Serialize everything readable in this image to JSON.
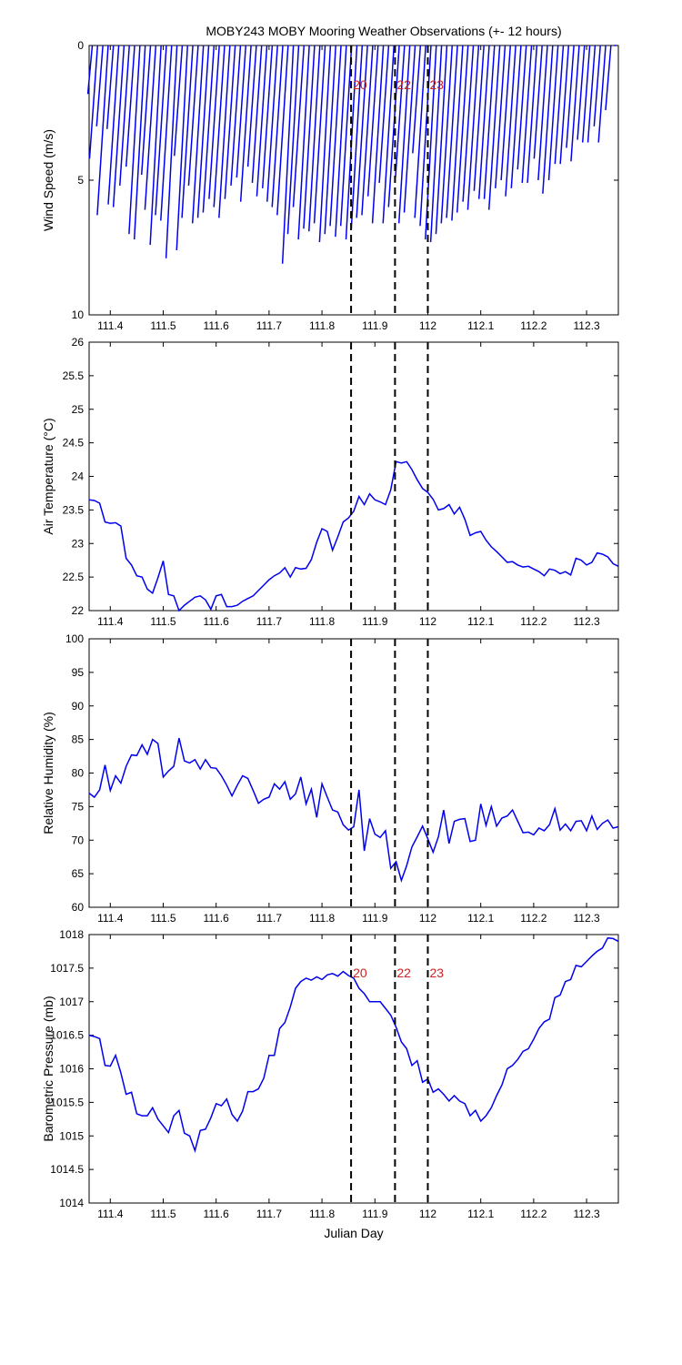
{
  "title": "MOBY243 MOBY Mooring Weather Observations (+- 12 hours)",
  "colors": {
    "series": "#0000ee",
    "marker_label": "#cc2222",
    "axis": "#000000"
  },
  "chart_data": [
    {
      "type": "line",
      "variant": "wind-stick",
      "ylabel": "Wind Speed (m/s)",
      "xlabel": "",
      "xlim": [
        111.36,
        112.36
      ],
      "ylim": [
        0,
        10
      ],
      "y_inverted": true,
      "xticks": [
        "111.4",
        "111.5",
        "111.6",
        "111.7",
        "111.8",
        "111.9",
        "112",
        "112.1",
        "112.2",
        "112.3"
      ],
      "yticks": [
        "0",
        "5",
        "10"
      ],
      "markers": [
        {
          "x": 111.855,
          "label": "20"
        },
        {
          "x": 111.938,
          "label": "22"
        },
        {
          "x": 112.0,
          "label": "23"
        }
      ],
      "series": [
        {
          "x": [
            111.366,
            111.376,
            111.386,
            111.396,
            111.406,
            111.416,
            111.426,
            111.436,
            111.446,
            111.456,
            111.466,
            111.476,
            111.486,
            111.496,
            111.506,
            111.516,
            111.526,
            111.536,
            111.546,
            111.556,
            111.566,
            111.576,
            111.586,
            111.596,
            111.606,
            111.616,
            111.626,
            111.636,
            111.646,
            111.656,
            111.666,
            111.676,
            111.686,
            111.696,
            111.706,
            111.716,
            111.726,
            111.736,
            111.746,
            111.756,
            111.766,
            111.776,
            111.786,
            111.796,
            111.806,
            111.816,
            111.826,
            111.836,
            111.846,
            111.856,
            111.866,
            111.876,
            111.886,
            111.896,
            111.906,
            111.916,
            111.926,
            111.936,
            111.946,
            111.956,
            111.966,
            111.976,
            111.986,
            111.996,
            112.006,
            112.016,
            112.026,
            112.036,
            112.046,
            112.056,
            112.066,
            112.076,
            112.086,
            112.096,
            112.106,
            112.116,
            112.126,
            112.136,
            112.146,
            112.156,
            112.166,
            112.176,
            112.186,
            112.196,
            112.206,
            112.216,
            112.226,
            112.236,
            112.246,
            112.256,
            112.266,
            112.276,
            112.286,
            112.296,
            112.306,
            112.316,
            112.326,
            112.336,
            112.346,
            112.356
          ],
          "values": [
            1.8,
            4.2,
            3.0,
            6.3,
            3.1,
            5.9,
            6.0,
            5.2,
            4.5,
            7.0,
            7.2,
            4.8,
            6.1,
            7.4,
            6.3,
            6.5,
            7.9,
            4.1,
            7.6,
            6.4,
            5.2,
            6.6,
            6.4,
            6.2,
            5.7,
            6.0,
            6.4,
            5.7,
            5.2,
            4.9,
            5.8,
            4.5,
            5.1,
            5.6,
            5.3,
            5.8,
            6.0,
            6.3,
            8.1,
            7.0,
            6.0,
            7.2,
            6.8,
            6.9,
            6.6,
            7.3,
            7.0,
            6.7,
            7.1,
            6.7,
            7.2,
            6.8,
            6.4,
            6.3,
            5.6,
            6.6,
            5.1,
            6.6,
            6.0,
            4.9,
            6.6,
            6.2,
            4.0,
            6.4,
            6.7,
            7.2,
            7.3,
            7.0,
            6.6,
            6.4,
            6.5,
            6.2,
            5.8,
            6.1,
            5.4,
            5.7,
            5.7,
            6.1,
            5.3,
            5.0,
            5.6,
            5.3,
            4.6,
            5.1,
            5.1,
            4.2,
            5.0,
            5.5,
            5.0,
            4.4,
            4.4,
            3.8,
            4.3,
            3.5,
            3.6,
            3.6,
            3.0,
            3.6,
            2.4,
            0.0
          ]
        }
      ]
    },
    {
      "type": "line",
      "ylabel": "Air Temperature (°C)",
      "xlabel": "",
      "xlim": [
        111.36,
        112.36
      ],
      "ylim": [
        22,
        26
      ],
      "xticks": [
        "111.4",
        "111.5",
        "111.6",
        "111.7",
        "111.8",
        "111.9",
        "112",
        "112.1",
        "112.2",
        "112.3"
      ],
      "yticks": [
        "22",
        "22.5",
        "23",
        "23.5",
        "24",
        "24.5",
        "25",
        "25.5",
        "26"
      ],
      "markers": [
        {
          "x": 111.855,
          "label": ""
        },
        {
          "x": 111.938,
          "label": ""
        },
        {
          "x": 112.0,
          "label": ""
        }
      ],
      "series": [
        {
          "x": [
            111.36,
            111.37,
            111.38,
            111.39,
            111.4,
            111.41,
            111.42,
            111.43,
            111.44,
            111.45,
            111.46,
            111.47,
            111.48,
            111.49,
            111.5,
            111.51,
            111.52,
            111.53,
            111.54,
            111.55,
            111.56,
            111.57,
            111.58,
            111.59,
            111.6,
            111.61,
            111.62,
            111.63,
            111.64,
            111.65,
            111.66,
            111.67,
            111.68,
            111.69,
            111.7,
            111.71,
            111.72,
            111.73,
            111.74,
            111.75,
            111.76,
            111.77,
            111.78,
            111.79,
            111.8,
            111.81,
            111.82,
            111.83,
            111.84,
            111.85,
            111.86,
            111.87,
            111.88,
            111.89,
            111.9,
            111.91,
            111.92,
            111.93,
            111.94,
            111.95,
            111.96,
            111.97,
            111.98,
            111.99,
            112.0,
            112.01,
            112.02,
            112.03,
            112.04,
            112.05,
            112.06,
            112.07,
            112.08,
            112.09,
            112.1,
            112.11,
            112.12,
            112.13,
            112.14,
            112.15,
            112.16,
            112.17,
            112.18,
            112.19,
            112.2,
            112.21,
            112.22,
            112.23,
            112.24,
            112.25,
            112.26,
            112.27,
            112.28,
            112.29,
            112.3,
            112.31,
            112.32,
            112.33,
            112.34,
            112.35,
            112.36
          ],
          "values": [
            23.65,
            23.64,
            23.6,
            23.32,
            23.3,
            23.31,
            23.26,
            22.78,
            22.68,
            22.52,
            22.5,
            22.32,
            22.26,
            22.49,
            22.74,
            22.24,
            22.22,
            22.0,
            22.08,
            22.14,
            22.2,
            22.22,
            22.16,
            22.02,
            22.22,
            22.24,
            22.06,
            22.06,
            22.08,
            22.14,
            22.18,
            22.22,
            22.3,
            22.38,
            22.46,
            22.52,
            22.56,
            22.64,
            22.5,
            22.64,
            22.62,
            22.63,
            22.76,
            23.02,
            23.22,
            23.18,
            22.9,
            23.1,
            23.32,
            23.38,
            23.48,
            23.7,
            23.58,
            23.74,
            23.65,
            23.62,
            23.58,
            23.8,
            24.22,
            24.2,
            24.22,
            24.1,
            23.95,
            23.82,
            23.76,
            23.66,
            23.5,
            23.52,
            23.58,
            23.44,
            23.54,
            23.36,
            23.12,
            23.16,
            23.18,
            23.05,
            22.95,
            22.88,
            22.8,
            22.72,
            22.73,
            22.68,
            22.65,
            22.66,
            22.62,
            22.58,
            22.52,
            22.62,
            22.6,
            22.55,
            22.58,
            22.53,
            22.78,
            22.75,
            22.68,
            22.72,
            22.86,
            22.84,
            22.8,
            22.7,
            22.66
          ]
        }
      ]
    },
    {
      "type": "line",
      "ylabel": "Relative Humidity (%)",
      "xlabel": "",
      "xlim": [
        111.36,
        112.36
      ],
      "ylim": [
        60,
        100
      ],
      "xticks": [
        "111.4",
        "111.5",
        "111.6",
        "111.7",
        "111.8",
        "111.9",
        "112",
        "112.1",
        "112.2",
        "112.3"
      ],
      "yticks": [
        "60",
        "65",
        "70",
        "75",
        "80",
        "85",
        "90",
        "95",
        "100"
      ],
      "markers": [
        {
          "x": 111.855,
          "label": ""
        },
        {
          "x": 111.938,
          "label": ""
        },
        {
          "x": 112.0,
          "label": ""
        }
      ],
      "series": [
        {
          "x": [
            111.36,
            111.37,
            111.38,
            111.39,
            111.4,
            111.41,
            111.42,
            111.43,
            111.44,
            111.45,
            111.46,
            111.47,
            111.48,
            111.49,
            111.5,
            111.51,
            111.52,
            111.53,
            111.54,
            111.55,
            111.56,
            111.57,
            111.58,
            111.59,
            111.6,
            111.61,
            111.62,
            111.63,
            111.64,
            111.65,
            111.66,
            111.67,
            111.68,
            111.69,
            111.7,
            111.71,
            111.72,
            111.73,
            111.74,
            111.75,
            111.76,
            111.77,
            111.78,
            111.79,
            111.8,
            111.81,
            111.82,
            111.83,
            111.84,
            111.85,
            111.86,
            111.87,
            111.88,
            111.89,
            111.9,
            111.91,
            111.92,
            111.93,
            111.94,
            111.95,
            111.96,
            111.97,
            111.98,
            111.99,
            112.0,
            112.01,
            112.02,
            112.03,
            112.04,
            112.05,
            112.06,
            112.07,
            112.08,
            112.09,
            112.1,
            112.11,
            112.12,
            112.13,
            112.14,
            112.15,
            112.16,
            112.17,
            112.18,
            112.19,
            112.2,
            112.21,
            112.22,
            112.23,
            112.24,
            112.25,
            112.26,
            112.27,
            112.28,
            112.29,
            112.3,
            112.31,
            112.32,
            112.33,
            112.34,
            112.35,
            112.36
          ],
          "values": [
            77.0,
            76.4,
            77.5,
            81.2,
            77.4,
            79.6,
            78.5,
            81.0,
            82.7,
            82.6,
            84.2,
            82.8,
            85.0,
            84.4,
            79.4,
            80.3,
            81.0,
            85.2,
            81.8,
            81.5,
            82.0,
            80.6,
            82.0,
            80.8,
            80.7,
            79.6,
            78.2,
            76.6,
            78.2,
            79.6,
            79.2,
            77.4,
            75.5,
            76.1,
            76.4,
            78.4,
            77.6,
            78.7,
            76.1,
            76.9,
            79.4,
            75.4,
            77.6,
            73.4,
            78.4,
            76.4,
            74.5,
            74.2,
            72.3,
            71.5,
            72.0,
            77.5,
            68.4,
            73.2,
            70.9,
            70.4,
            71.4,
            65.8,
            66.8,
            64.0,
            66.2,
            69.0,
            70.5,
            72.1,
            70.2,
            68.2,
            70.5,
            74.5,
            69.5,
            72.8,
            73.1,
            73.2,
            69.8,
            70.0,
            75.4,
            72.2,
            75.0,
            72.1,
            73.3,
            73.6,
            74.5,
            72.8,
            71.1,
            71.2,
            70.8,
            71.8,
            71.4,
            72.3,
            74.7,
            71.5,
            72.4,
            71.4,
            72.8,
            72.9,
            71.4,
            73.6,
            71.6,
            72.5,
            73.0,
            71.8,
            72.0
          ]
        }
      ]
    },
    {
      "type": "line",
      "ylabel": "Barometric Pressure (mb)",
      "xlabel": "Julian Day",
      "xlim": [
        111.36,
        112.36
      ],
      "ylim": [
        1014,
        1018
      ],
      "xticks": [
        "111.4",
        "111.5",
        "111.6",
        "111.7",
        "111.8",
        "111.9",
        "112",
        "112.1",
        "112.2",
        "112.3"
      ],
      "yticks": [
        "1014",
        "1014.5",
        "1015",
        "1015.5",
        "1016",
        "1016.5",
        "1017",
        "1017.5",
        "1018"
      ],
      "markers": [
        {
          "x": 111.855,
          "label": "20"
        },
        {
          "x": 111.938,
          "label": "22"
        },
        {
          "x": 112.0,
          "label": "23"
        }
      ],
      "series": [
        {
          "x": [
            111.36,
            111.37,
            111.38,
            111.39,
            111.4,
            111.41,
            111.42,
            111.43,
            111.44,
            111.45,
            111.46,
            111.47,
            111.48,
            111.49,
            111.5,
            111.51,
            111.52,
            111.53,
            111.54,
            111.55,
            111.56,
            111.57,
            111.58,
            111.59,
            111.6,
            111.61,
            111.62,
            111.63,
            111.64,
            111.65,
            111.66,
            111.67,
            111.68,
            111.69,
            111.7,
            111.71,
            111.72,
            111.73,
            111.74,
            111.75,
            111.76,
            111.77,
            111.78,
            111.79,
            111.8,
            111.81,
            111.82,
            111.83,
            111.84,
            111.85,
            111.86,
            111.87,
            111.88,
            111.89,
            111.9,
            111.91,
            111.92,
            111.93,
            111.94,
            111.95,
            111.96,
            111.97,
            111.98,
            111.99,
            112.0,
            112.01,
            112.02,
            112.03,
            112.04,
            112.05,
            112.06,
            112.07,
            112.08,
            112.09,
            112.1,
            112.11,
            112.12,
            112.13,
            112.14,
            112.15,
            112.16,
            112.17,
            112.18,
            112.19,
            112.2,
            112.21,
            112.22,
            112.23,
            112.24,
            112.25,
            112.26,
            112.27,
            112.28,
            112.29,
            112.3,
            112.31,
            112.32,
            112.33,
            112.34,
            112.35,
            112.36
          ],
          "values": [
            1016.5,
            1016.48,
            1016.45,
            1016.05,
            1016.04,
            1016.2,
            1015.94,
            1015.62,
            1015.65,
            1015.33,
            1015.3,
            1015.3,
            1015.42,
            1015.25,
            1015.15,
            1015.05,
            1015.3,
            1015.38,
            1015.04,
            1015.0,
            1014.78,
            1015.08,
            1015.1,
            1015.27,
            1015.48,
            1015.45,
            1015.55,
            1015.32,
            1015.22,
            1015.37,
            1015.66,
            1015.66,
            1015.7,
            1015.86,
            1016.2,
            1016.2,
            1016.6,
            1016.69,
            1016.92,
            1017.2,
            1017.3,
            1017.35,
            1017.32,
            1017.37,
            1017.33,
            1017.4,
            1017.42,
            1017.38,
            1017.45,
            1017.39,
            1017.35,
            1017.2,
            1017.12,
            1017.0,
            1017.0,
            1017.0,
            1016.9,
            1016.8,
            1016.62,
            1016.4,
            1016.3,
            1016.05,
            1016.12,
            1015.8,
            1015.85,
            1015.65,
            1015.7,
            1015.62,
            1015.52,
            1015.6,
            1015.52,
            1015.48,
            1015.3,
            1015.38,
            1015.22,
            1015.3,
            1015.42,
            1015.6,
            1015.76,
            1016.0,
            1016.05,
            1016.14,
            1016.26,
            1016.3,
            1016.44,
            1016.6,
            1016.7,
            1016.74,
            1017.06,
            1017.1,
            1017.3,
            1017.33,
            1017.54,
            1017.52,
            1017.6,
            1017.68,
            1017.75,
            1017.8,
            1017.95,
            1017.94,
            1017.9
          ]
        }
      ]
    }
  ]
}
